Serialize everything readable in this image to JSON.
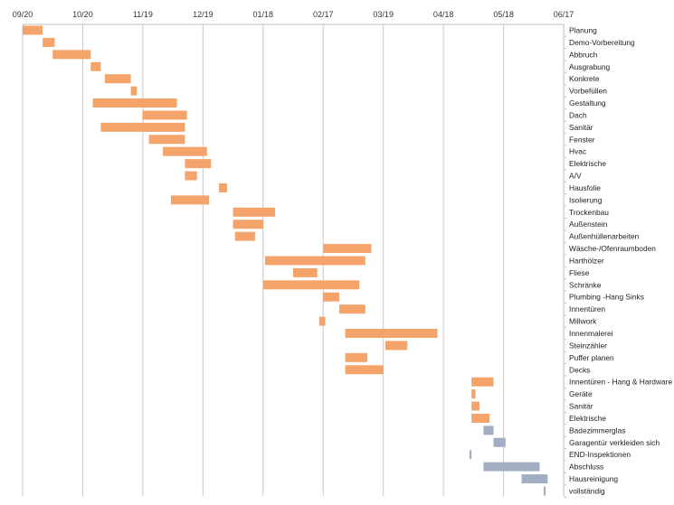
{
  "chart_data": {
    "type": "bar",
    "orientation": "horizontal-gantt",
    "title": "",
    "xlabel": "",
    "ylabel": "",
    "x_axis_position": "top",
    "grid": true,
    "legend": "none",
    "x_ticks": [
      "09/20",
      "10/20",
      "11/19",
      "12/19",
      "01/18",
      "02/17",
      "03/19",
      "04/18",
      "05/18",
      "06/17"
    ],
    "xlim": [
      "09/20",
      "06/17"
    ],
    "colors": {
      "in_progress": "#f4a46a",
      "completed": "#a2aec4",
      "grid": "#c8c8c8"
    },
    "categories": [
      "Planung",
      "Demo-Vorbereitung",
      "Abbruch",
      "Ausgrabung",
      "Konkrete",
      "Vorbefüllen",
      "Gestaltung",
      "Dach",
      "Sanitär",
      "Fenster",
      "Hvac",
      "Elektrische",
      "A/V",
      "Hausfolie",
      "Isolierung",
      "Trockenbau",
      "Außenstein",
      "Außenhüllenarbeiten",
      "Wäsche-/Ofenraumboden",
      "Harthölzer",
      "Fliese",
      "Schränke",
      "Plumbing -Hang Sinks",
      "Innentüren",
      "Millwork",
      "Innenmalerei",
      "Steinzähler",
      "Puffer planen",
      "Decks",
      "Innentüren - Hang & Hardware",
      "Geräte",
      "Sanitär",
      "Elektrische",
      "Badezimmerglas",
      "Garagentür verkleiden sich",
      "END-Inspektionen",
      "Abschluss",
      "Hausreinigung",
      "vollständig"
    ],
    "series": [
      {
        "status": "in_progress",
        "start": [
          0,
          10,
          15,
          34,
          41,
          54,
          35,
          60,
          39,
          63,
          70,
          81,
          81,
          98,
          74,
          105,
          105,
          106,
          150,
          121,
          135,
          120,
          150,
          158,
          148,
          161,
          181,
          161,
          161,
          224,
          224,
          224,
          224
        ],
        "duration": [
          10,
          6,
          19,
          5,
          13,
          3,
          42,
          22,
          42,
          18,
          22,
          13,
          6,
          4,
          19,
          21,
          15,
          10,
          24,
          50,
          12,
          48,
          8,
          13,
          3,
          46,
          11,
          11,
          19,
          11,
          2,
          4,
          9
        ]
      },
      {
        "status": "completed",
        "start": [
          230,
          235,
          223,
          230,
          249,
          260
        ],
        "duration": [
          5,
          6,
          1,
          28,
          13,
          1
        ]
      }
    ]
  }
}
